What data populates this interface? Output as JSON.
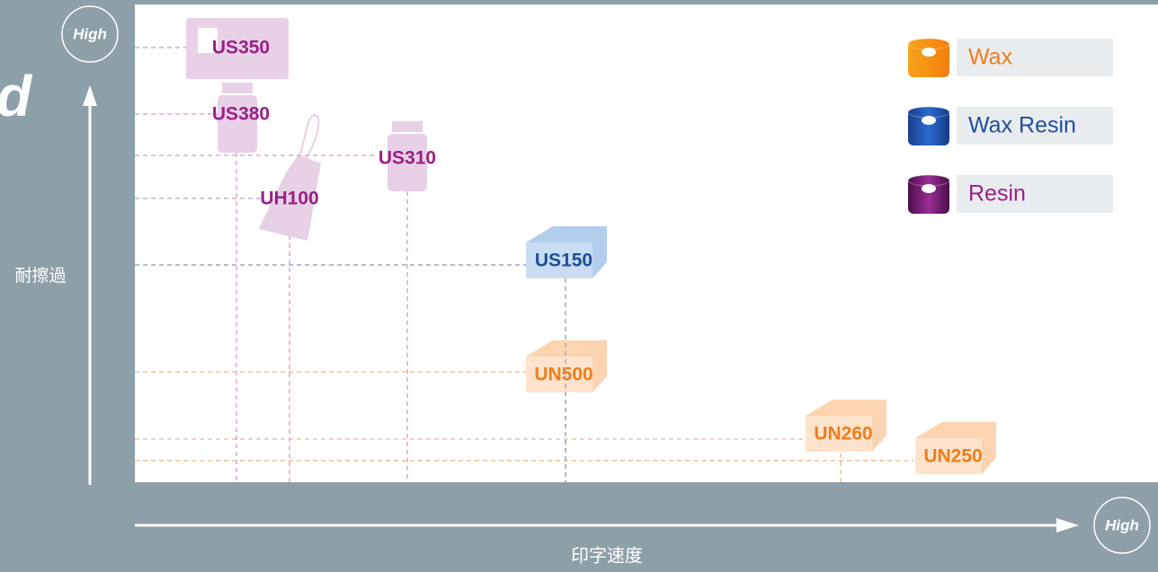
{
  "axis": {
    "y_label": "耐擦過",
    "y_high": "High",
    "x_label": "印字速度",
    "x_high": "High"
  },
  "cut_text": "d",
  "legend": [
    {
      "label": "Wax",
      "products": [
        "UN500",
        "UN260",
        "UN250"
      ]
    },
    {
      "label": "Wax Resin",
      "products": [
        "US150"
      ]
    },
    {
      "label": "Resin",
      "products": [
        "US350",
        "US380",
        "UH100",
        "US310"
      ]
    }
  ]
}
